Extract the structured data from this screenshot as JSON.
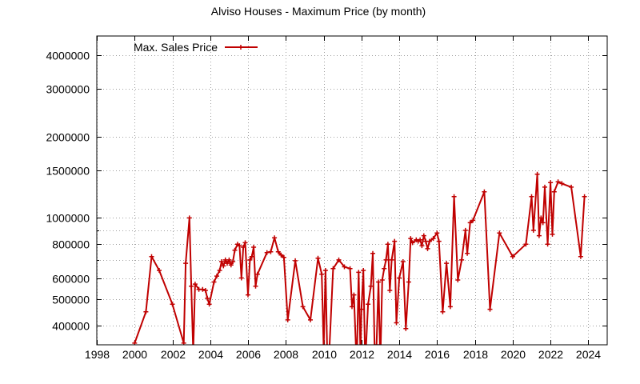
{
  "chart_data": {
    "type": "line",
    "title": "Alviso Houses - Maximum Price (by month)",
    "xlabel": "",
    "ylabel": "",
    "y_scale": "log",
    "xlim": [
      1998,
      2025
    ],
    "ylim": [
      340000,
      4700000
    ],
    "grid": true,
    "legend_position": "top-left",
    "x_ticks": [
      1998,
      2000,
      2002,
      2004,
      2006,
      2008,
      2010,
      2012,
      2014,
      2016,
      2018,
      2020,
      2022,
      2024
    ],
    "x_tick_labels": [
      "1998",
      "2000",
      "2002",
      "2004",
      "2006",
      "2008",
      "2010",
      "2012",
      "2014",
      "2016",
      "2018",
      "2020",
      "2022",
      "2024"
    ],
    "y_ticks": [
      400000,
      500000,
      600000,
      800000,
      1000000,
      1500000,
      2000000,
      3000000,
      4000000
    ],
    "y_tick_labels": [
      "400000",
      "500000",
      "600000",
      "800000",
      "1000000",
      "1500000",
      "2000000",
      "3000000",
      "4000000"
    ],
    "y_minor_grid": [
      700000,
      900000
    ],
    "series": [
      {
        "name": "Max. Sales Price",
        "color": "#c00000",
        "x": [
          2000.0,
          2000.6,
          2000.9,
          2001.3,
          2002.0,
          2002.6,
          2002.7,
          2002.9,
          2003.0,
          2003.1,
          2003.2,
          2003.4,
          2003.6,
          2003.75,
          2003.85,
          2003.95,
          2004.2,
          2004.35,
          2004.5,
          2004.6,
          2004.7,
          2004.8,
          2004.9,
          2005.0,
          2005.1,
          2005.2,
          2005.3,
          2005.45,
          2005.55,
          2005.65,
          2005.75,
          2005.85,
          2006.0,
          2006.1,
          2006.2,
          2006.3,
          2006.4,
          2006.5,
          2007.0,
          2007.2,
          2007.4,
          2007.6,
          2007.75,
          2007.9,
          2008.1,
          2008.5,
          2008.9,
          2009.3,
          2009.7,
          2009.9,
          2010.0,
          2010.1,
          2010.2,
          2010.3,
          2010.5,
          2010.8,
          2011.1,
          2011.4,
          2011.5,
          2011.6,
          2011.75,
          2011.85,
          2011.95,
          2012.0,
          2012.1,
          2012.2,
          2012.35,
          2012.5,
          2012.6,
          2012.7,
          2012.8,
          2012.9,
          2013.0,
          2013.1,
          2013.2,
          2013.3,
          2013.4,
          2013.5,
          2013.6,
          2013.75,
          2013.85,
          2014.0,
          2014.2,
          2014.35,
          2014.5,
          2014.6,
          2014.7,
          2014.9,
          2015.0,
          2015.1,
          2015.2,
          2015.3,
          2015.4,
          2015.5,
          2015.6,
          2015.8,
          2016.0,
          2016.1,
          2016.3,
          2016.5,
          2016.7,
          2016.9,
          2017.1,
          2017.3,
          2017.5,
          2017.6,
          2017.75,
          2017.9,
          2018.5,
          2018.8,
          2019.3,
          2020.0,
          2020.7,
          2021.0,
          2021.1,
          2021.3,
          2021.4,
          2021.5,
          2021.6,
          2021.7,
          2021.85,
          2022.0,
          2022.1,
          2022.2,
          2022.4,
          2022.6,
          2023.1,
          2023.6,
          2023.8
        ],
        "values": [
          345000,
          450000,
          720000,
          640000,
          480000,
          345000,
          680000,
          1000000,
          560000,
          320000,
          570000,
          545000,
          545000,
          540000,
          505000,
          480000,
          580000,
          610000,
          640000,
          690000,
          665000,
          700000,
          680000,
          700000,
          670000,
          690000,
          760000,
          800000,
          790000,
          600000,
          780000,
          810000,
          520000,
          700000,
          720000,
          780000,
          560000,
          620000,
          745000,
          750000,
          845000,
          750000,
          730000,
          715000,
          420000,
          695000,
          470000,
          420000,
          710000,
          620000,
          330000,
          640000,
          290000,
          320000,
          650000,
          700000,
          660000,
          650000,
          470000,
          520000,
          280000,
          630000,
          310000,
          460000,
          640000,
          290000,
          480000,
          560000,
          740000,
          310000,
          340000,
          580000,
          290000,
          590000,
          650000,
          700000,
          800000,
          540000,
          700000,
          820000,
          410000,
          600000,
          690000,
          390000,
          580000,
          840000,
          810000,
          830000,
          820000,
          830000,
          790000,
          860000,
          820000,
          770000,
          820000,
          840000,
          880000,
          820000,
          450000,
          680000,
          470000,
          1200000,
          590000,
          700000,
          900000,
          740000,
          960000,
          980000,
          1250000,
          460000,
          880000,
          720000,
          800000,
          1200000,
          900000,
          1450000,
          860000,
          1000000,
          960000,
          1300000,
          800000,
          1350000,
          870000,
          1250000,
          1360000,
          1340000,
          1300000,
          720000,
          1200000
        ]
      }
    ]
  }
}
